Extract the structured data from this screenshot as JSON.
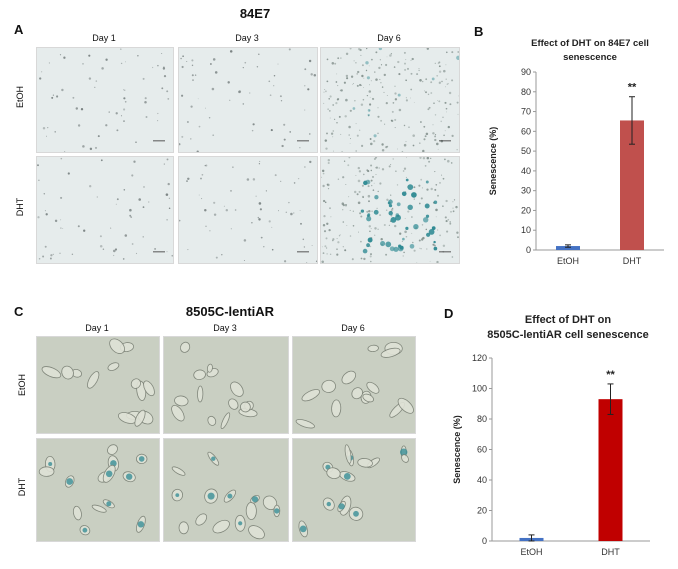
{
  "figure": {
    "panel_a": {
      "letter": "A",
      "title": "84E7",
      "days": [
        "Day 1",
        "Day 3",
        "Day 6"
      ],
      "rows": [
        "EtOH",
        "DHT"
      ]
    },
    "panel_b": {
      "letter": "B"
    },
    "panel_c": {
      "letter": "C",
      "title": "8505C-lentiAR",
      "days": [
        "Day 1",
        "Day 3",
        "Day 6"
      ],
      "rows": [
        "EtOH",
        "DHT"
      ]
    },
    "panel_d": {
      "letter": "D"
    }
  },
  "colors": {
    "etoh_bar": "#4472c4",
    "dht_bar_b": "#c0504d",
    "dht_bar_d": "#c00000",
    "cell_bg_a": "#e6ecec",
    "cell_bg_c": "#c9cfc2",
    "stain_blue": "#2f8a93"
  },
  "chart_data": [
    {
      "panel": "B",
      "type": "bar",
      "title": "Effect of DHT on 84E7 cell senescence",
      "xlabel": "",
      "ylabel": "Senescence (%)",
      "categories": [
        "EtOH",
        "DHT"
      ],
      "values": [
        2,
        65.5
      ],
      "error": [
        0.6,
        12
      ],
      "annotation": "**",
      "ylim": [
        0,
        90
      ],
      "yticks": [
        "0",
        "10",
        "20",
        "30",
        "40",
        "50",
        "60",
        "70",
        "80",
        "90"
      ],
      "colors": [
        "#4472c4",
        "#c0504d"
      ]
    },
    {
      "panel": "D",
      "type": "bar",
      "title": "Effect of DHT on 8505C-lentiAR cell senescence",
      "xlabel": "",
      "ylabel": "Senescence (%)",
      "categories": [
        "EtOH",
        "DHT"
      ],
      "values": [
        2,
        93
      ],
      "error": [
        2,
        10
      ],
      "annotation": "**",
      "ylim": [
        0,
        120
      ],
      "yticks": [
        "0",
        "20",
        "40",
        "60",
        "80",
        "100",
        "120"
      ],
      "colors": [
        "#4472c4",
        "#c00000"
      ]
    }
  ]
}
